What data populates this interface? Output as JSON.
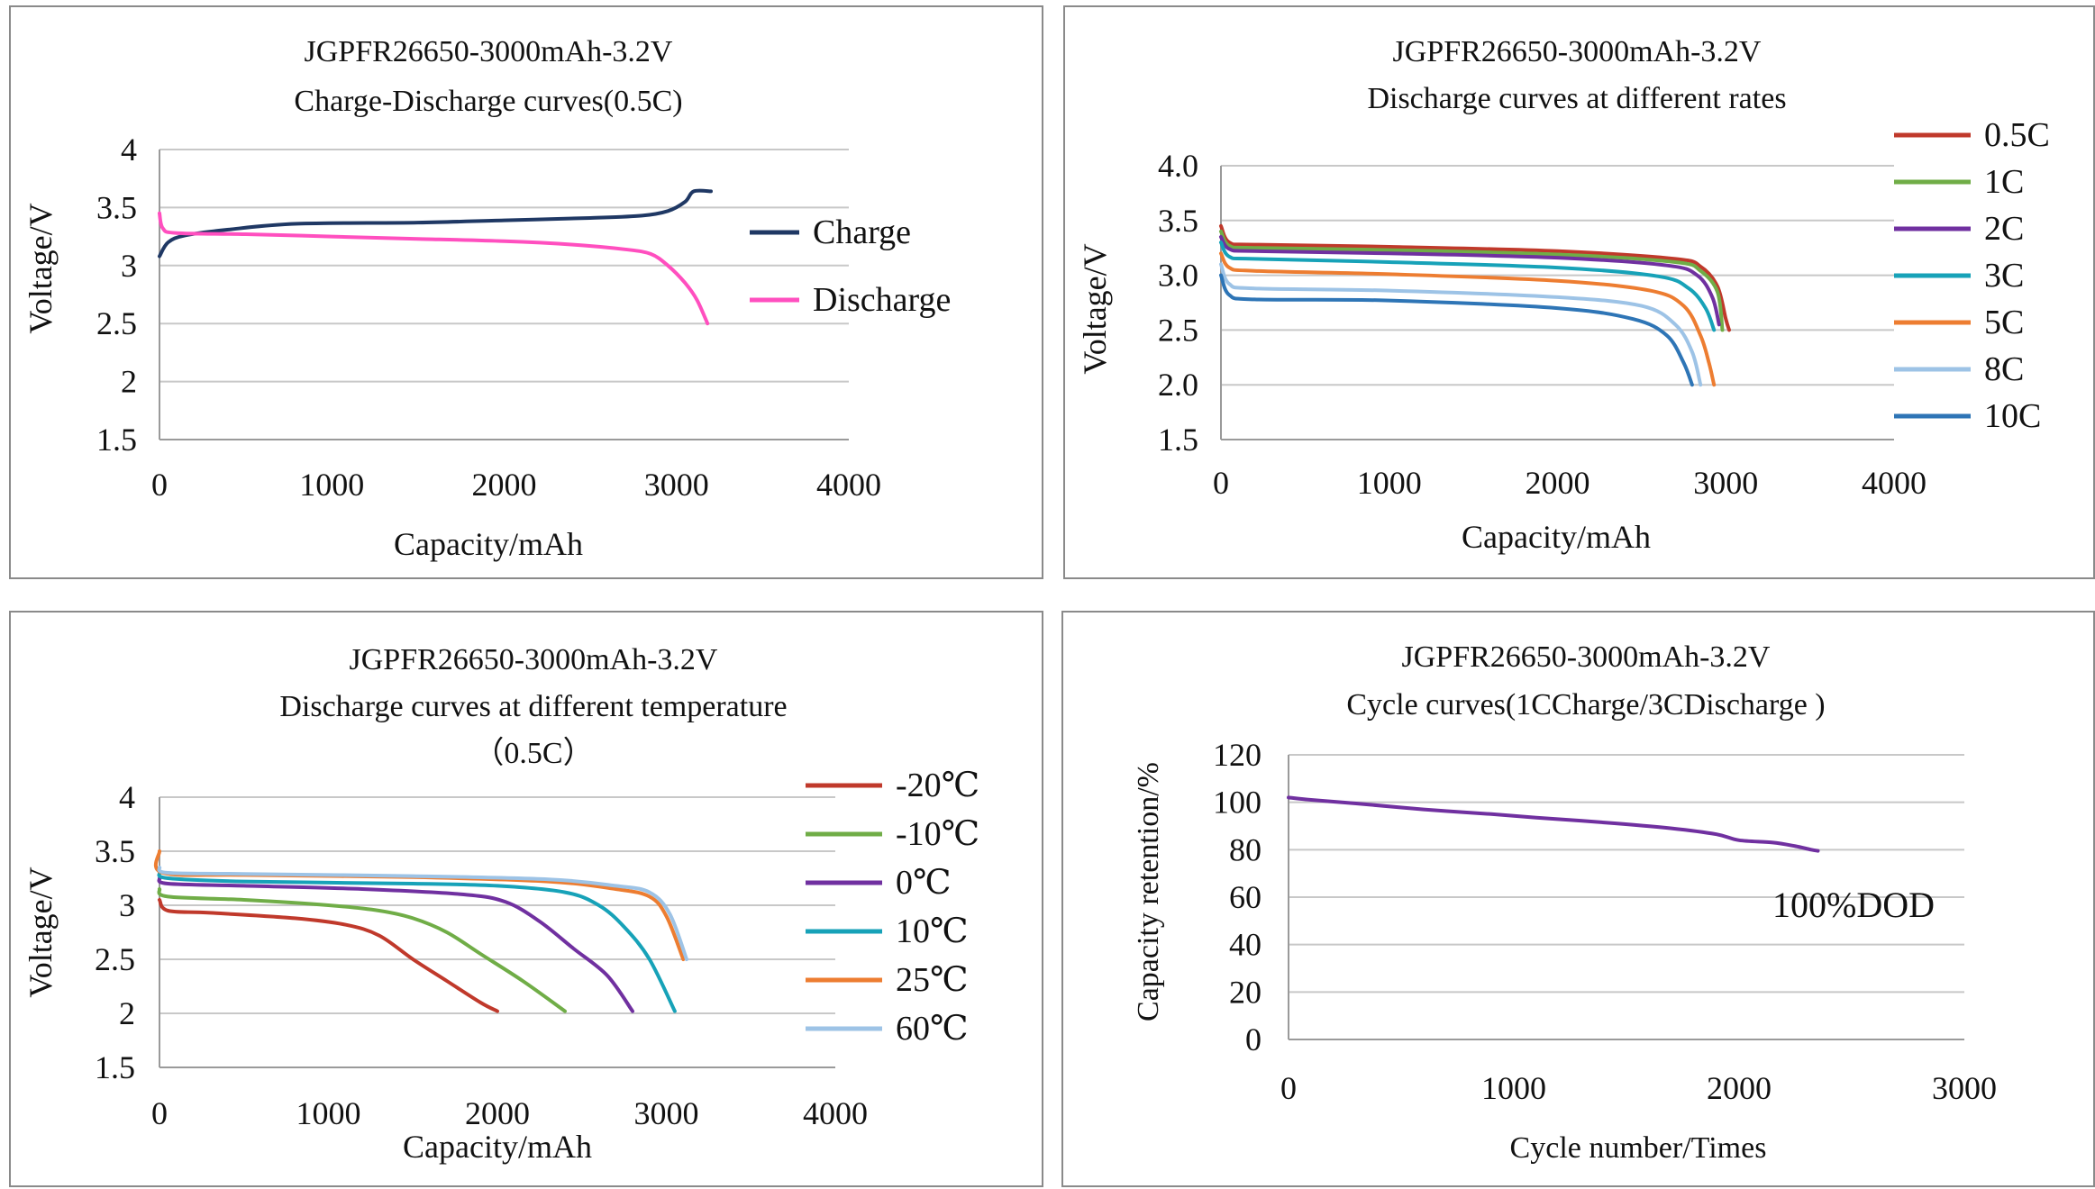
{
  "chart_data": [
    {
      "id": "charge_discharge",
      "type": "line",
      "title": [
        "JGPFR26650-3000mAh-3.2V",
        "Charge-Discharge curves(0.5C)"
      ],
      "xlabel": "Capacity/mAh",
      "ylabel": "Voltage/V",
      "xlim": [
        0,
        4000
      ],
      "ylim": [
        1.5,
        4
      ],
      "xticks": [
        0,
        1000,
        2000,
        3000,
        4000
      ],
      "xtick_labels": [
        "0",
        "1000",
        "2000",
        "3000",
        "4000"
      ],
      "yticks": [
        1.5,
        2,
        2.5,
        3,
        3.5,
        4
      ],
      "ytick_labels": [
        "1.5",
        "2",
        "2.5",
        "3",
        "3.5",
        "4"
      ],
      "grid": "horizontal",
      "legend": "right",
      "series": [
        {
          "name": "Charge",
          "color": "#1f3864",
          "points": [
            [
              0,
              3.08
            ],
            [
              50,
              3.2
            ],
            [
              150,
              3.26
            ],
            [
              400,
              3.31
            ],
            [
              800,
              3.36
            ],
            [
              1500,
              3.37
            ],
            [
              2000,
              3.39
            ],
            [
              2500,
              3.41
            ],
            [
              2800,
              3.43
            ],
            [
              2950,
              3.47
            ],
            [
              3050,
              3.55
            ],
            [
              3100,
              3.64
            ],
            [
              3200,
              3.64
            ]
          ]
        },
        {
          "name": "Discharge",
          "color": "#ff4fbf",
          "points": [
            [
              0,
              3.45
            ],
            [
              20,
              3.32
            ],
            [
              100,
              3.28
            ],
            [
              500,
              3.27
            ],
            [
              1000,
              3.25
            ],
            [
              1500,
              3.23
            ],
            [
              2000,
              3.21
            ],
            [
              2400,
              3.18
            ],
            [
              2700,
              3.14
            ],
            [
              2850,
              3.1
            ],
            [
              2950,
              3.0
            ],
            [
              3050,
              2.85
            ],
            [
              3120,
              2.7
            ],
            [
              3180,
              2.5
            ]
          ]
        }
      ]
    },
    {
      "id": "rates",
      "type": "line",
      "title": [
        "JGPFR26650-3000mAh-3.2V",
        "Discharge curves at different rates"
      ],
      "xlabel": "Capacity/mAh",
      "ylabel": "Voltage/V",
      "xlim": [
        0,
        4000
      ],
      "ylim": [
        1.5,
        4.0
      ],
      "xticks": [
        0,
        1000,
        2000,
        3000,
        4000
      ],
      "xtick_labels": [
        "0",
        "1000",
        "2000",
        "3000",
        "4000"
      ],
      "yticks": [
        1.5,
        2.0,
        2.5,
        3.0,
        3.5,
        4.0
      ],
      "ytick_labels": [
        "1.5",
        "2.0",
        "2.5",
        "3.0",
        "3.5",
        "4.0"
      ],
      "grid": "horizontal",
      "legend": "right",
      "series": [
        {
          "name": "0.5C",
          "color": "#c0392b",
          "points": [
            [
              0,
              3.45
            ],
            [
              50,
              3.3
            ],
            [
              200,
              3.28
            ],
            [
              1000,
              3.26
            ],
            [
              2000,
              3.22
            ],
            [
              2700,
              3.15
            ],
            [
              2850,
              3.08
            ],
            [
              2950,
              2.9
            ],
            [
              3000,
              2.6
            ],
            [
              3020,
              2.5
            ]
          ]
        },
        {
          "name": "1C",
          "color": "#70ad47",
          "points": [
            [
              0,
              3.4
            ],
            [
              50,
              3.27
            ],
            [
              200,
              3.25
            ],
            [
              1000,
              3.23
            ],
            [
              2000,
              3.19
            ],
            [
              2700,
              3.12
            ],
            [
              2850,
              3.04
            ],
            [
              2950,
              2.85
            ],
            [
              2980,
              2.5
            ]
          ]
        },
        {
          "name": "2C",
          "color": "#7030a0",
          "points": [
            [
              0,
              3.35
            ],
            [
              50,
              3.24
            ],
            [
              200,
              3.22
            ],
            [
              1000,
              3.2
            ],
            [
              2000,
              3.16
            ],
            [
              2650,
              3.09
            ],
            [
              2830,
              3.0
            ],
            [
              2920,
              2.8
            ],
            [
              2960,
              2.55
            ]
          ]
        },
        {
          "name": "3C",
          "color": "#17a2b8",
          "points": [
            [
              0,
              3.3
            ],
            [
              50,
              3.17
            ],
            [
              200,
              3.15
            ],
            [
              1000,
              3.12
            ],
            [
              2000,
              3.07
            ],
            [
              2600,
              2.99
            ],
            [
              2780,
              2.88
            ],
            [
              2880,
              2.7
            ],
            [
              2930,
              2.5
            ]
          ]
        },
        {
          "name": "5C",
          "color": "#ed7d31",
          "points": [
            [
              0,
              3.2
            ],
            [
              50,
              3.07
            ],
            [
              200,
              3.04
            ],
            [
              1000,
              3.01
            ],
            [
              2000,
              2.95
            ],
            [
              2550,
              2.86
            ],
            [
              2750,
              2.72
            ],
            [
              2850,
              2.45
            ],
            [
              2900,
              2.2
            ],
            [
              2930,
              2.0
            ]
          ]
        },
        {
          "name": "8C",
          "color": "#9dc3e6",
          "points": [
            [
              0,
              3.1
            ],
            [
              50,
              2.92
            ],
            [
              200,
              2.88
            ],
            [
              1000,
              2.86
            ],
            [
              2000,
              2.8
            ],
            [
              2500,
              2.72
            ],
            [
              2700,
              2.55
            ],
            [
              2800,
              2.3
            ],
            [
              2850,
              2.0
            ]
          ]
        },
        {
          "name": "10C",
          "color": "#2e75b6",
          "points": [
            [
              0,
              3.0
            ],
            [
              50,
              2.82
            ],
            [
              200,
              2.78
            ],
            [
              1000,
              2.77
            ],
            [
              2000,
              2.7
            ],
            [
              2450,
              2.6
            ],
            [
              2650,
              2.45
            ],
            [
              2750,
              2.2
            ],
            [
              2800,
              2.0
            ]
          ]
        }
      ]
    },
    {
      "id": "temperature",
      "type": "line",
      "title": [
        "JGPFR26650-3000mAh-3.2V",
        "Discharge curves at different temperature",
        "（0.5C）"
      ],
      "xlabel": "Capacity/mAh",
      "ylabel": "Voltage/V",
      "xlim": [
        0,
        4000
      ],
      "ylim": [
        1.5,
        4
      ],
      "xticks": [
        0,
        1000,
        2000,
        3000,
        4000
      ],
      "xtick_labels": [
        "0",
        "1000",
        "2000",
        "3000",
        "4000"
      ],
      "yticks": [
        1.5,
        2,
        2.5,
        3,
        3.5,
        4
      ],
      "ytick_labels": [
        "1.5",
        "2",
        "2.5",
        "3",
        "3.5",
        "4"
      ],
      "grid": "horizontal",
      "legend": "right",
      "series": [
        {
          "name": "-20℃",
          "color": "#c0392b",
          "points": [
            [
              0,
              3.05
            ],
            [
              50,
              2.95
            ],
            [
              300,
              2.93
            ],
            [
              800,
              2.88
            ],
            [
              1100,
              2.82
            ],
            [
              1300,
              2.72
            ],
            [
              1500,
              2.5
            ],
            [
              1700,
              2.3
            ],
            [
              1900,
              2.1
            ],
            [
              2000,
              2.02
            ]
          ]
        },
        {
          "name": "-10℃",
          "color": "#70ad47",
          "points": [
            [
              0,
              3.15
            ],
            [
              50,
              3.08
            ],
            [
              500,
              3.05
            ],
            [
              1000,
              3.0
            ],
            [
              1300,
              2.95
            ],
            [
              1500,
              2.88
            ],
            [
              1700,
              2.75
            ],
            [
              1900,
              2.55
            ],
            [
              2150,
              2.3
            ],
            [
              2400,
              2.02
            ]
          ]
        },
        {
          "name": "0℃",
          "color": "#7030a0",
          "points": [
            [
              0,
              3.25
            ],
            [
              50,
              3.2
            ],
            [
              500,
              3.18
            ],
            [
              1200,
              3.15
            ],
            [
              1800,
              3.1
            ],
            [
              2050,
              3.03
            ],
            [
              2250,
              2.85
            ],
            [
              2450,
              2.6
            ],
            [
              2650,
              2.35
            ],
            [
              2800,
              2.02
            ]
          ]
        },
        {
          "name": "10℃",
          "color": "#17a2b8",
          "points": [
            [
              0,
              3.3
            ],
            [
              50,
              3.25
            ],
            [
              500,
              3.22
            ],
            [
              1500,
              3.2
            ],
            [
              2000,
              3.18
            ],
            [
              2400,
              3.12
            ],
            [
              2600,
              3.0
            ],
            [
              2750,
              2.8
            ],
            [
              2900,
              2.5
            ],
            [
              3050,
              2.02
            ]
          ]
        },
        {
          "name": "25℃",
          "color": "#ed7d31",
          "points": [
            [
              0,
              3.5
            ],
            [
              20,
              3.3
            ],
            [
              500,
              3.28
            ],
            [
              1500,
              3.26
            ],
            [
              2300,
              3.22
            ],
            [
              2700,
              3.15
            ],
            [
              2900,
              3.08
            ],
            [
              3000,
              2.9
            ],
            [
              3100,
              2.5
            ]
          ]
        },
        {
          "name": "60℃",
          "color": "#9dc3e6",
          "points": [
            [
              0,
              3.35
            ],
            [
              50,
              3.3
            ],
            [
              500,
              3.29
            ],
            [
              1500,
              3.27
            ],
            [
              2300,
              3.24
            ],
            [
              2700,
              3.18
            ],
            [
              2900,
              3.12
            ],
            [
              3020,
              2.92
            ],
            [
              3120,
              2.5
            ]
          ]
        }
      ]
    },
    {
      "id": "cycle",
      "type": "line",
      "title": [
        "JGPFR26650-3000mAh-3.2V",
        "Cycle curves(1CCharge/3CDischarge )"
      ],
      "xlabel": "Cycle number/Times",
      "ylabel": "Capacity retention/%",
      "annotation": "100%DOD",
      "xlim": [
        0,
        3000
      ],
      "ylim": [
        0,
        120
      ],
      "xticks": [
        0,
        1000,
        2000,
        3000
      ],
      "xtick_labels": [
        "0",
        "1000",
        "2000",
        "3000"
      ],
      "yticks": [
        0,
        20,
        40,
        60,
        80,
        100,
        120
      ],
      "ytick_labels": [
        "0",
        "20",
        "40",
        "60",
        "80",
        "100",
        "120"
      ],
      "grid": "horizontal",
      "legend": "none",
      "series": [
        {
          "color": "#7030a0",
          "points": [
            [
              0,
              102
            ],
            [
              100,
              101
            ],
            [
              300,
              99.5
            ],
            [
              600,
              97
            ],
            [
              900,
              95
            ],
            [
              1100,
              93.5
            ],
            [
              1400,
              91.5
            ],
            [
              1700,
              89
            ],
            [
              1900,
              86.5
            ],
            [
              2000,
              84
            ],
            [
              2150,
              83
            ],
            [
              2250,
              81.5
            ],
            [
              2320,
              80
            ],
            [
              2350,
              79.5
            ]
          ]
        }
      ]
    }
  ]
}
